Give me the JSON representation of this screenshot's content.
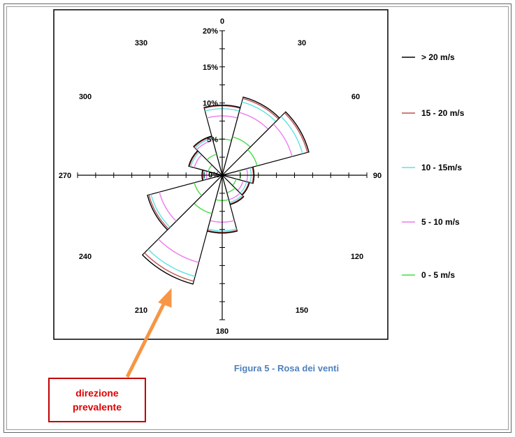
{
  "caption": "Figura 5 - Rosa dei venti",
  "callout": {
    "line1": "direzione",
    "line2": "prevalente"
  },
  "colors": {
    "over20": "#000000",
    "s15_20": "#c0504d",
    "s10_15": "#5fe3e3",
    "s5_10": "#ee7aee",
    "s0_5": "#44dd44",
    "arrow": "#f79646",
    "caption": "#4f81bd",
    "callout_text": "#e00000",
    "callout_border": "#c00000"
  },
  "chart_data": {
    "type": "wind-rose",
    "title": "",
    "radial_max": 20,
    "radial_ticks": [
      {
        "value": 5,
        "label": "5%"
      },
      {
        "value": 10,
        "label": "10%"
      },
      {
        "value": 15,
        "label": "15%"
      },
      {
        "value": 20,
        "label": "20%"
      }
    ],
    "center_label": "0%",
    "direction_labels": [
      "0",
      "30",
      "60",
      "90",
      "120",
      "150",
      "180",
      "210",
      "240",
      "270",
      "300",
      "330"
    ],
    "speed_classes": [
      {
        "name": "> 20 m/s",
        "color": "#000000"
      },
      {
        "name": "15 - 20 m/s",
        "color": "#c0504d"
      },
      {
        "name": "10 - 15m/s",
        "color": "#5fe3e3"
      },
      {
        "name": "5 - 10 m/s",
        "color": "#ee7aee"
      },
      {
        "name": "0 - 5 m/s",
        "color": "#44dd44"
      }
    ],
    "sectors": [
      {
        "direction": 0,
        "cumulative": [
          5.0,
          8.2,
          9.2,
          9.6,
          9.7
        ]
      },
      {
        "direction": 30,
        "cumulative": [
          5.5,
          9.0,
          10.5,
          11.0,
          11.2
        ]
      },
      {
        "direction": 60,
        "cumulative": [
          5.0,
          10.0,
          11.5,
          12.2,
          12.4
        ]
      },
      {
        "direction": 90,
        "cumulative": [
          2.5,
          3.5,
          4.0,
          4.3,
          4.4
        ]
      },
      {
        "direction": 120,
        "cumulative": [
          2.0,
          3.0,
          3.5,
          3.8,
          3.9
        ]
      },
      {
        "direction": 150,
        "cumulative": [
          2.5,
          3.5,
          3.9,
          4.1,
          4.2
        ]
      },
      {
        "direction": 180,
        "cumulative": [
          3.5,
          6.5,
          7.7,
          7.9,
          8.0
        ]
      },
      {
        "direction": 210,
        "cumulative": [
          5.5,
          12.5,
          14.5,
          15.2,
          15.6
        ]
      },
      {
        "direction": 240,
        "cumulative": [
          4.0,
          9.0,
          10.2,
          10.5,
          10.7
        ]
      },
      {
        "direction": 270,
        "cumulative": [
          1.5,
          2.2,
          2.5,
          2.7,
          2.8
        ]
      },
      {
        "direction": 300,
        "cumulative": [
          2.0,
          4.0,
          4.5,
          4.7,
          4.8
        ]
      },
      {
        "direction": 330,
        "cumulative": [
          3.0,
          5.0,
          5.3,
          5.5,
          5.6
        ]
      }
    ],
    "legend_position": "right"
  }
}
